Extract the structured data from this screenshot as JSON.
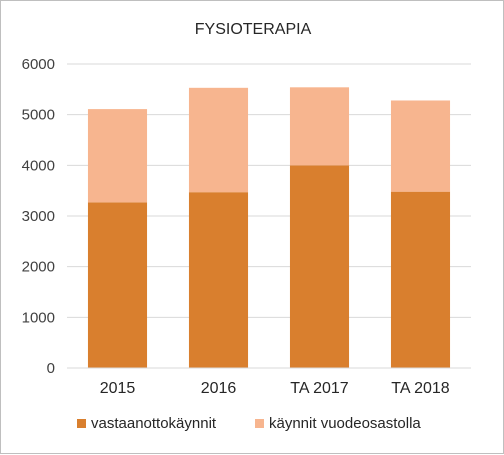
{
  "chart_data": {
    "type": "bar",
    "stacked": true,
    "title": "FYSIOTERAPIA",
    "categories": [
      "2015",
      "2016",
      "TA 2017",
      "TA 2018"
    ],
    "series": [
      {
        "name": "vastaanottokäynnit",
        "values": [
          3270,
          3470,
          4000,
          3480
        ],
        "color": "#d97f2e"
      },
      {
        "name": "käynnit vuodeosastolla",
        "values": [
          1840,
          2060,
          1540,
          1800
        ],
        "color": "#f7b58f"
      }
    ],
    "ylim": [
      0,
      6000
    ],
    "yticks": [
      0,
      1000,
      2000,
      3000,
      4000,
      5000,
      6000
    ],
    "grid": true,
    "legend": "bottom",
    "xlabel": "",
    "ylabel": ""
  }
}
